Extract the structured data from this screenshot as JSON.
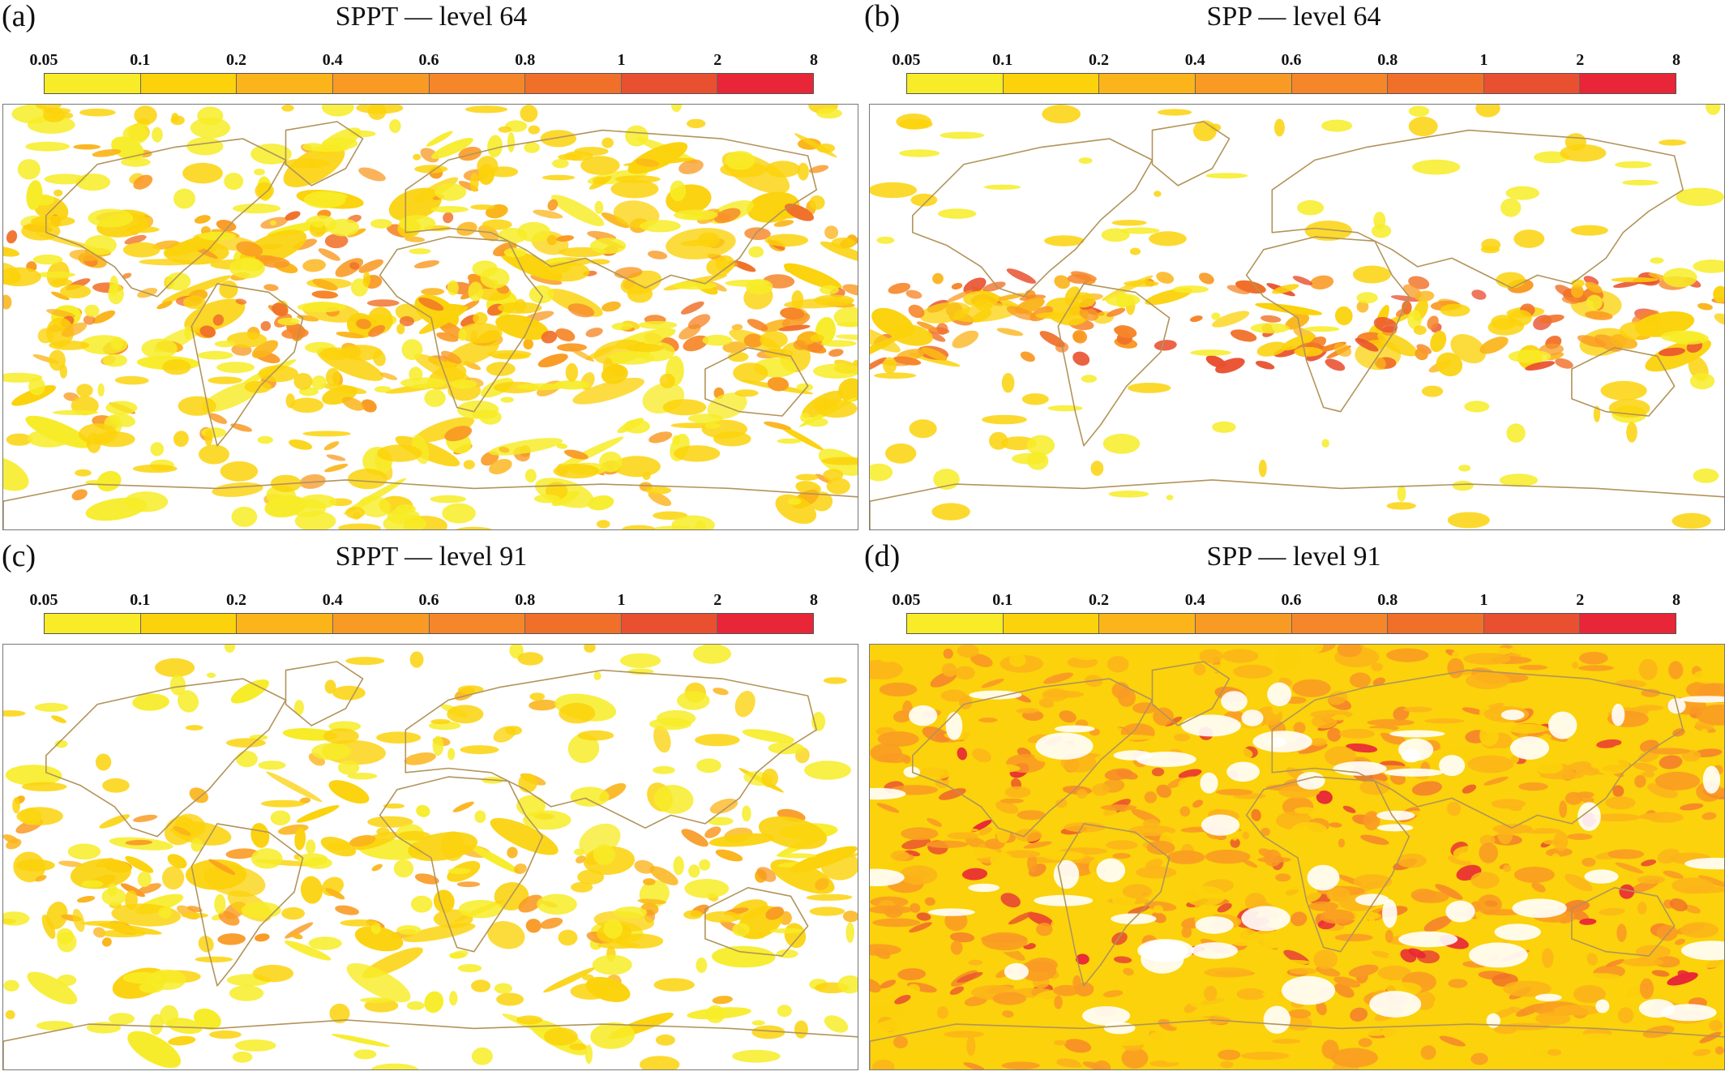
{
  "colorbar": {
    "labels": [
      "0.05",
      "0.1",
      "0.2",
      "0.4",
      "0.6",
      "0.8",
      "1",
      "2",
      "8"
    ],
    "colors": [
      "#f7ec27",
      "#fbd20b",
      "#fbb41a",
      "#f99a24",
      "#f6862a",
      "#f07029",
      "#e9502f",
      "#e82637"
    ]
  },
  "coastline_color": "#b2945a",
  "panels": [
    {
      "letter": "(a)",
      "title": "SPPT — level 64"
    },
    {
      "letter": "(b)",
      "title": "SPP — level 64"
    },
    {
      "letter": "(c)",
      "title": "SPPT — level 91"
    },
    {
      "letter": "(d)",
      "title": "SPP — level 91"
    }
  ]
}
